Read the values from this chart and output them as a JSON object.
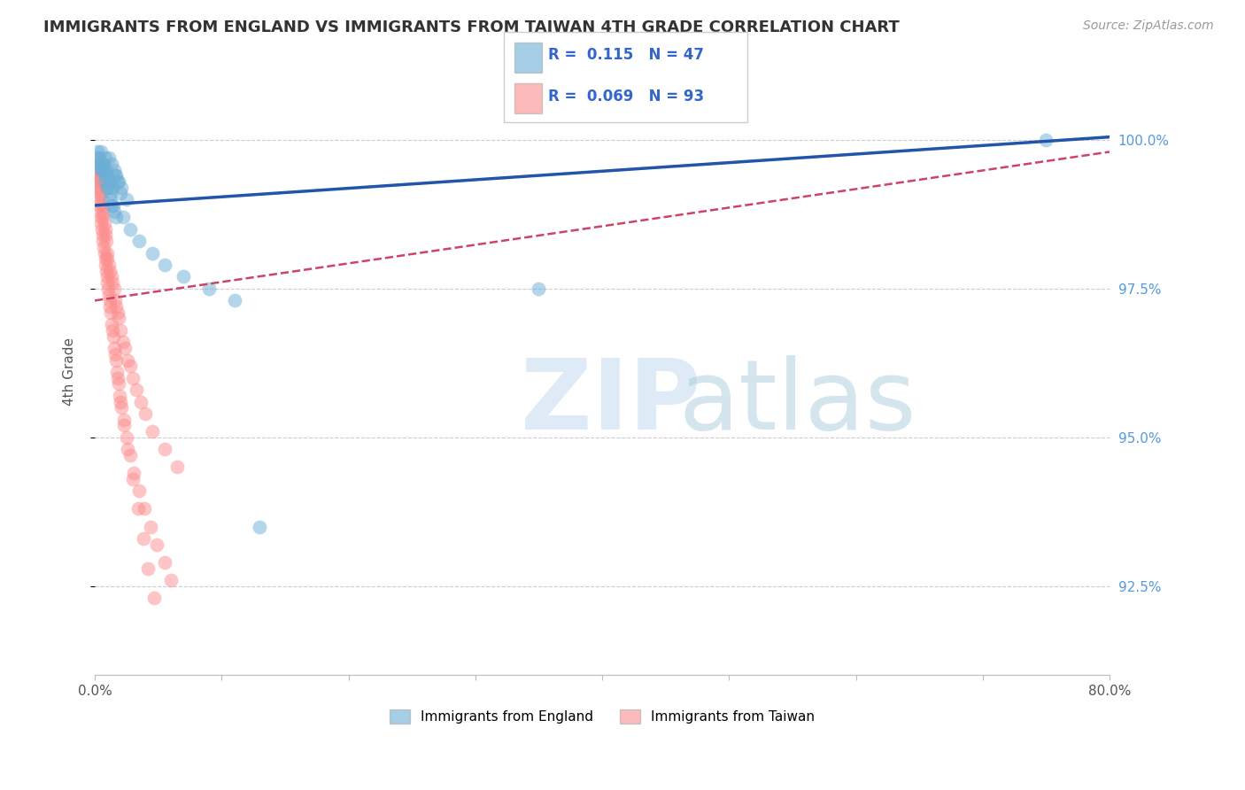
{
  "title": "IMMIGRANTS FROM ENGLAND VS IMMIGRANTS FROM TAIWAN 4TH GRADE CORRELATION CHART",
  "source": "Source: ZipAtlas.com",
  "ylabel": "4th Grade",
  "xmin": 0.0,
  "xmax": 80.0,
  "ymin": 91.0,
  "ymax": 101.2,
  "ytick_vals": [
    92.5,
    95.0,
    97.5,
    100.0
  ],
  "ytick_labels": [
    "92.5%",
    "95.0%",
    "97.5%",
    "100.0%"
  ],
  "xtick_vals": [
    0.0,
    10.0,
    20.0,
    30.0,
    40.0,
    50.0,
    60.0,
    70.0,
    80.0
  ],
  "xtick_labels": [
    "0.0%",
    "",
    "",
    "",
    "",
    "",
    "",
    "",
    "80.0%"
  ],
  "legend_england_label": "Immigrants from England",
  "legend_taiwan_label": "Immigrants from Taiwan",
  "england_color": "#6BAED6",
  "taiwan_color": "#FC8D8D",
  "england_R": 0.115,
  "england_N": 47,
  "taiwan_R": 0.069,
  "taiwan_N": 93,
  "england_line_color": "#2255AA",
  "taiwan_line_color": "#CC4466",
  "england_scatter_x": [
    0.3,
    0.5,
    0.7,
    0.9,
    1.1,
    1.3,
    1.5,
    1.7,
    1.9,
    2.1,
    0.4,
    0.6,
    0.8,
    1.0,
    1.2,
    1.4,
    1.6,
    1.8,
    2.0,
    2.5,
    0.2,
    0.35,
    0.55,
    0.75,
    0.95,
    1.15,
    1.35,
    1.55,
    2.2,
    2.8,
    3.5,
    4.5,
    5.5,
    7.0,
    9.0,
    11.0,
    35.0,
    13.0,
    75.0,
    0.25,
    0.45,
    0.65,
    0.85,
    1.05,
    1.25,
    1.45,
    1.65
  ],
  "england_scatter_y": [
    99.7,
    99.8,
    99.6,
    99.5,
    99.7,
    99.6,
    99.5,
    99.4,
    99.3,
    99.2,
    99.6,
    99.5,
    99.7,
    99.4,
    99.3,
    99.2,
    99.4,
    99.3,
    99.1,
    99.0,
    99.8,
    99.6,
    99.5,
    99.3,
    99.2,
    99.0,
    98.9,
    98.8,
    98.7,
    98.5,
    98.3,
    98.1,
    97.9,
    97.7,
    97.5,
    97.3,
    97.5,
    93.5,
    100.0,
    99.7,
    99.5,
    99.6,
    99.4,
    99.2,
    99.1,
    98.9,
    98.7
  ],
  "taiwan_scatter_x": [
    0.1,
    0.15,
    0.2,
    0.25,
    0.3,
    0.35,
    0.4,
    0.45,
    0.5,
    0.55,
    0.6,
    0.65,
    0.7,
    0.75,
    0.8,
    0.85,
    0.9,
    0.95,
    1.0,
    1.1,
    1.2,
    1.3,
    1.4,
    1.5,
    1.6,
    1.7,
    1.8,
    1.9,
    2.0,
    2.2,
    2.4,
    2.6,
    2.8,
    3.0,
    3.3,
    3.6,
    4.0,
    4.5,
    5.5,
    6.5,
    0.15,
    0.25,
    0.35,
    0.45,
    0.55,
    0.65,
    0.75,
    0.85,
    0.95,
    1.05,
    1.15,
    1.25,
    1.35,
    1.45,
    1.55,
    1.65,
    1.75,
    1.85,
    1.95,
    2.1,
    2.3,
    2.5,
    2.8,
    3.1,
    3.5,
    3.9,
    4.4,
    4.9,
    5.5,
    6.0,
    0.1,
    0.2,
    0.3,
    0.4,
    0.5,
    0.6,
    0.7,
    0.8,
    0.9,
    1.0,
    1.1,
    1.2,
    1.4,
    1.6,
    1.8,
    2.0,
    2.3,
    2.6,
    3.0,
    3.4,
    3.8,
    4.2,
    4.7
  ],
  "taiwan_scatter_y": [
    99.5,
    99.4,
    99.6,
    99.3,
    99.5,
    99.2,
    99.4,
    99.1,
    99.3,
    99.0,
    98.9,
    98.7,
    98.8,
    98.6,
    98.5,
    98.4,
    98.3,
    98.1,
    98.0,
    97.9,
    97.8,
    97.7,
    97.6,
    97.5,
    97.3,
    97.2,
    97.1,
    97.0,
    96.8,
    96.6,
    96.5,
    96.3,
    96.2,
    96.0,
    95.8,
    95.6,
    95.4,
    95.1,
    94.8,
    94.5,
    99.3,
    99.1,
    98.9,
    98.7,
    98.5,
    98.3,
    98.1,
    97.9,
    97.7,
    97.5,
    97.3,
    97.1,
    96.9,
    96.7,
    96.5,
    96.3,
    96.1,
    95.9,
    95.7,
    95.5,
    95.3,
    95.0,
    94.7,
    94.4,
    94.1,
    93.8,
    93.5,
    93.2,
    92.9,
    92.6,
    99.4,
    99.2,
    99.0,
    98.8,
    98.6,
    98.4,
    98.2,
    98.0,
    97.8,
    97.6,
    97.4,
    97.2,
    96.8,
    96.4,
    96.0,
    95.6,
    95.2,
    94.8,
    94.3,
    93.8,
    93.3,
    92.8,
    92.3
  ],
  "eng_line_x0": 0.0,
  "eng_line_x1": 80.0,
  "eng_line_y0": 98.9,
  "eng_line_y1": 100.05,
  "tai_line_x0": 0.0,
  "tai_line_x1": 80.0,
  "tai_line_y0": 97.3,
  "tai_line_y1": 99.8
}
